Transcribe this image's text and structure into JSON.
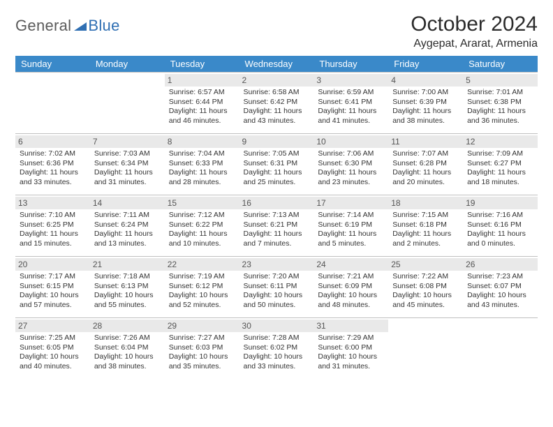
{
  "colors": {
    "header_bar": "#3a89c9",
    "daynum_bg": "#e9e9e9",
    "border": "#bfbfbf",
    "logo_gray": "#5a5a5a",
    "logo_blue": "#2f6fb3",
    "text": "#333333",
    "background": "#ffffff"
  },
  "logo": {
    "part1": "General",
    "part2": "Blue"
  },
  "title": "October 2024",
  "location": "Aygepat, Ararat, Armenia",
  "dow": [
    "Sunday",
    "Monday",
    "Tuesday",
    "Wednesday",
    "Thursday",
    "Friday",
    "Saturday"
  ],
  "weeks": [
    [
      {
        "n": "",
        "empty": true
      },
      {
        "n": "",
        "empty": true
      },
      {
        "n": "1",
        "sr": "Sunrise: 6:57 AM",
        "ss": "Sunset: 6:44 PM",
        "d1": "Daylight: 11 hours",
        "d2": "and 46 minutes."
      },
      {
        "n": "2",
        "sr": "Sunrise: 6:58 AM",
        "ss": "Sunset: 6:42 PM",
        "d1": "Daylight: 11 hours",
        "d2": "and 43 minutes."
      },
      {
        "n": "3",
        "sr": "Sunrise: 6:59 AM",
        "ss": "Sunset: 6:41 PM",
        "d1": "Daylight: 11 hours",
        "d2": "and 41 minutes."
      },
      {
        "n": "4",
        "sr": "Sunrise: 7:00 AM",
        "ss": "Sunset: 6:39 PM",
        "d1": "Daylight: 11 hours",
        "d2": "and 38 minutes."
      },
      {
        "n": "5",
        "sr": "Sunrise: 7:01 AM",
        "ss": "Sunset: 6:38 PM",
        "d1": "Daylight: 11 hours",
        "d2": "and 36 minutes."
      }
    ],
    [
      {
        "n": "6",
        "sr": "Sunrise: 7:02 AM",
        "ss": "Sunset: 6:36 PM",
        "d1": "Daylight: 11 hours",
        "d2": "and 33 minutes."
      },
      {
        "n": "7",
        "sr": "Sunrise: 7:03 AM",
        "ss": "Sunset: 6:34 PM",
        "d1": "Daylight: 11 hours",
        "d2": "and 31 minutes."
      },
      {
        "n": "8",
        "sr": "Sunrise: 7:04 AM",
        "ss": "Sunset: 6:33 PM",
        "d1": "Daylight: 11 hours",
        "d2": "and 28 minutes."
      },
      {
        "n": "9",
        "sr": "Sunrise: 7:05 AM",
        "ss": "Sunset: 6:31 PM",
        "d1": "Daylight: 11 hours",
        "d2": "and 25 minutes."
      },
      {
        "n": "10",
        "sr": "Sunrise: 7:06 AM",
        "ss": "Sunset: 6:30 PM",
        "d1": "Daylight: 11 hours",
        "d2": "and 23 minutes."
      },
      {
        "n": "11",
        "sr": "Sunrise: 7:07 AM",
        "ss": "Sunset: 6:28 PM",
        "d1": "Daylight: 11 hours",
        "d2": "and 20 minutes."
      },
      {
        "n": "12",
        "sr": "Sunrise: 7:09 AM",
        "ss": "Sunset: 6:27 PM",
        "d1": "Daylight: 11 hours",
        "d2": "and 18 minutes."
      }
    ],
    [
      {
        "n": "13",
        "sr": "Sunrise: 7:10 AM",
        "ss": "Sunset: 6:25 PM",
        "d1": "Daylight: 11 hours",
        "d2": "and 15 minutes."
      },
      {
        "n": "14",
        "sr": "Sunrise: 7:11 AM",
        "ss": "Sunset: 6:24 PM",
        "d1": "Daylight: 11 hours",
        "d2": "and 13 minutes."
      },
      {
        "n": "15",
        "sr": "Sunrise: 7:12 AM",
        "ss": "Sunset: 6:22 PM",
        "d1": "Daylight: 11 hours",
        "d2": "and 10 minutes."
      },
      {
        "n": "16",
        "sr": "Sunrise: 7:13 AM",
        "ss": "Sunset: 6:21 PM",
        "d1": "Daylight: 11 hours",
        "d2": "and 7 minutes."
      },
      {
        "n": "17",
        "sr": "Sunrise: 7:14 AM",
        "ss": "Sunset: 6:19 PM",
        "d1": "Daylight: 11 hours",
        "d2": "and 5 minutes."
      },
      {
        "n": "18",
        "sr": "Sunrise: 7:15 AM",
        "ss": "Sunset: 6:18 PM",
        "d1": "Daylight: 11 hours",
        "d2": "and 2 minutes."
      },
      {
        "n": "19",
        "sr": "Sunrise: 7:16 AM",
        "ss": "Sunset: 6:16 PM",
        "d1": "Daylight: 11 hours",
        "d2": "and 0 minutes."
      }
    ],
    [
      {
        "n": "20",
        "sr": "Sunrise: 7:17 AM",
        "ss": "Sunset: 6:15 PM",
        "d1": "Daylight: 10 hours",
        "d2": "and 57 minutes."
      },
      {
        "n": "21",
        "sr": "Sunrise: 7:18 AM",
        "ss": "Sunset: 6:13 PM",
        "d1": "Daylight: 10 hours",
        "d2": "and 55 minutes."
      },
      {
        "n": "22",
        "sr": "Sunrise: 7:19 AM",
        "ss": "Sunset: 6:12 PM",
        "d1": "Daylight: 10 hours",
        "d2": "and 52 minutes."
      },
      {
        "n": "23",
        "sr": "Sunrise: 7:20 AM",
        "ss": "Sunset: 6:11 PM",
        "d1": "Daylight: 10 hours",
        "d2": "and 50 minutes."
      },
      {
        "n": "24",
        "sr": "Sunrise: 7:21 AM",
        "ss": "Sunset: 6:09 PM",
        "d1": "Daylight: 10 hours",
        "d2": "and 48 minutes."
      },
      {
        "n": "25",
        "sr": "Sunrise: 7:22 AM",
        "ss": "Sunset: 6:08 PM",
        "d1": "Daylight: 10 hours",
        "d2": "and 45 minutes."
      },
      {
        "n": "26",
        "sr": "Sunrise: 7:23 AM",
        "ss": "Sunset: 6:07 PM",
        "d1": "Daylight: 10 hours",
        "d2": "and 43 minutes."
      }
    ],
    [
      {
        "n": "27",
        "sr": "Sunrise: 7:25 AM",
        "ss": "Sunset: 6:05 PM",
        "d1": "Daylight: 10 hours",
        "d2": "and 40 minutes."
      },
      {
        "n": "28",
        "sr": "Sunrise: 7:26 AM",
        "ss": "Sunset: 6:04 PM",
        "d1": "Daylight: 10 hours",
        "d2": "and 38 minutes."
      },
      {
        "n": "29",
        "sr": "Sunrise: 7:27 AM",
        "ss": "Sunset: 6:03 PM",
        "d1": "Daylight: 10 hours",
        "d2": "and 35 minutes."
      },
      {
        "n": "30",
        "sr": "Sunrise: 7:28 AM",
        "ss": "Sunset: 6:02 PM",
        "d1": "Daylight: 10 hours",
        "d2": "and 33 minutes."
      },
      {
        "n": "31",
        "sr": "Sunrise: 7:29 AM",
        "ss": "Sunset: 6:00 PM",
        "d1": "Daylight: 10 hours",
        "d2": "and 31 minutes."
      },
      {
        "n": "",
        "empty": true
      },
      {
        "n": "",
        "empty": true
      }
    ]
  ]
}
